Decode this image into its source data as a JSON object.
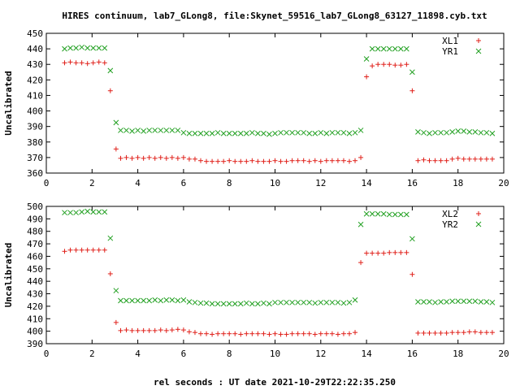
{
  "title": "HIRES continuum, lab7_GLong8, file:Skynet_59516_lab7_GLong8_63127_11898.cyb.txt",
  "xlabel": "rel seconds : UT date 2021-10-29T22:22:35.250",
  "chart_data": [
    {
      "type": "scatter",
      "ylabel": "Uncalibrated",
      "xlim": [
        0,
        20
      ],
      "ylim": [
        360,
        450
      ],
      "xticks": [
        0,
        2,
        4,
        6,
        8,
        10,
        12,
        14,
        16,
        18,
        20
      ],
      "yticks": [
        360,
        370,
        380,
        390,
        400,
        410,
        420,
        430,
        440,
        450
      ],
      "grid": false,
      "legend_position": "top-right",
      "x": [
        0.8,
        1.05,
        1.3,
        1.55,
        1.8,
        2.05,
        2.3,
        2.55,
        2.8,
        3.05,
        3.25,
        3.5,
        3.75,
        4.0,
        4.25,
        4.5,
        4.75,
        5.0,
        5.25,
        5.5,
        5.75,
        6.0,
        6.25,
        6.5,
        6.75,
        7.0,
        7.25,
        7.5,
        7.75,
        8.0,
        8.25,
        8.5,
        8.75,
        9.0,
        9.25,
        9.5,
        9.75,
        10.0,
        10.25,
        10.5,
        10.75,
        11.0,
        11.25,
        11.5,
        11.75,
        12.0,
        12.25,
        12.5,
        12.75,
        13.0,
        13.25,
        13.5,
        13.75,
        14.0,
        14.25,
        14.5,
        14.75,
        15.0,
        15.25,
        15.5,
        15.75,
        16.0,
        16.25,
        16.5,
        16.75,
        17.0,
        17.25,
        17.5,
        17.75,
        18.0,
        18.25,
        18.5,
        18.75,
        19.0,
        19.25,
        19.5
      ],
      "series": [
        {
          "name": "XL1",
          "marker": "plus",
          "color": "#e0201a",
          "values": [
            431,
            431.5,
            431,
            431,
            430.5,
            431,
            431.5,
            431,
            413,
            375.5,
            369.5,
            370,
            369.5,
            370,
            369.5,
            370,
            369.5,
            370,
            369.5,
            370,
            369.5,
            370,
            369,
            369,
            368,
            367.5,
            367.5,
            367.5,
            367.5,
            368,
            367.5,
            367.5,
            367.5,
            368,
            367.5,
            367.5,
            367.5,
            368,
            367.5,
            367.5,
            368,
            368,
            368,
            367.5,
            368,
            367.5,
            368,
            368,
            368,
            368,
            367.5,
            368,
            370,
            422,
            429,
            430,
            430,
            430,
            429.5,
            429.5,
            430,
            413,
            368,
            368.5,
            368,
            368,
            368,
            368,
            369,
            369.5,
            369,
            369,
            369,
            369,
            369,
            369
          ]
        },
        {
          "name": "YR1",
          "marker": "cross",
          "color": "#22a022",
          "values": [
            440,
            440.5,
            440.5,
            441,
            440.5,
            440.5,
            440.5,
            440.5,
            426,
            392.5,
            387.5,
            387.5,
            387,
            387.5,
            387,
            387.5,
            387.5,
            387.5,
            387.5,
            387.5,
            387.5,
            386,
            385.5,
            385.5,
            385.5,
            385.5,
            385.5,
            386,
            385.5,
            385.5,
            385.5,
            385.5,
            385.5,
            386,
            385.5,
            385.5,
            385,
            385.5,
            386,
            386,
            386,
            386,
            386,
            385.5,
            385.5,
            386,
            385.5,
            386,
            386,
            386,
            385.5,
            386,
            387.5,
            433.5,
            440,
            440,
            440,
            440,
            440,
            440,
            440,
            425,
            386.5,
            386,
            385.5,
            386,
            386,
            386,
            386.5,
            387,
            387,
            386.5,
            386.5,
            386,
            386,
            385.5
          ]
        }
      ]
    },
    {
      "type": "scatter",
      "ylabel": "Uncalibrated",
      "xlim": [
        0,
        20
      ],
      "ylim": [
        390,
        500
      ],
      "xticks": [
        0,
        2,
        4,
        6,
        8,
        10,
        12,
        14,
        16,
        18,
        20
      ],
      "yticks": [
        390,
        400,
        410,
        420,
        430,
        440,
        450,
        460,
        470,
        480,
        490,
        500
      ],
      "grid": false,
      "legend_position": "top-right",
      "x": [
        0.8,
        1.05,
        1.3,
        1.55,
        1.8,
        2.05,
        2.3,
        2.55,
        2.8,
        3.05,
        3.25,
        3.5,
        3.75,
        4.0,
        4.25,
        4.5,
        4.75,
        5.0,
        5.25,
        5.5,
        5.75,
        6.0,
        6.25,
        6.5,
        6.75,
        7.0,
        7.25,
        7.5,
        7.75,
        8.0,
        8.25,
        8.5,
        8.75,
        9.0,
        9.25,
        9.5,
        9.75,
        10.0,
        10.25,
        10.5,
        10.75,
        11.0,
        11.25,
        11.5,
        11.75,
        12.0,
        12.25,
        12.5,
        12.75,
        13.0,
        13.25,
        13.5,
        13.75,
        14.0,
        14.25,
        14.5,
        14.75,
        15.0,
        15.25,
        15.5,
        15.75,
        16.0,
        16.25,
        16.5,
        16.75,
        17.0,
        17.25,
        17.5,
        17.75,
        18.0,
        18.25,
        18.5,
        18.75,
        19.0,
        19.25,
        19.5
      ],
      "series": [
        {
          "name": "XL2",
          "marker": "plus",
          "color": "#e0201a",
          "values": [
            464,
            465,
            465,
            465,
            465,
            465,
            465,
            465,
            446,
            407,
            400.5,
            401,
            400.5,
            400.5,
            400.5,
            400.5,
            400.5,
            401,
            400.5,
            401,
            401.5,
            401,
            399.5,
            399,
            398,
            398,
            397.5,
            398,
            398,
            398,
            398,
            397.5,
            398,
            398,
            398,
            398,
            397.5,
            398,
            397.5,
            397.5,
            398,
            398,
            398,
            398,
            397.5,
            398,
            398,
            398,
            397.5,
            398,
            398,
            399,
            455,
            462.5,
            462.5,
            462.5,
            462.5,
            463,
            463,
            463,
            463,
            445.5,
            398.5,
            398.5,
            398.5,
            398.5,
            398.5,
            398.5,
            399,
            399,
            399,
            399.5,
            399.5,
            399,
            399,
            399
          ]
        },
        {
          "name": "YR2",
          "marker": "cross",
          "color": "#22a022",
          "values": [
            495,
            495,
            495,
            495.5,
            496,
            495.5,
            495.5,
            495.5,
            474.5,
            432.5,
            424.5,
            424.5,
            424.5,
            424.5,
            424.5,
            424.5,
            425,
            424.5,
            425,
            425,
            424.5,
            425,
            423.5,
            423,
            422.5,
            422.5,
            422,
            422,
            422,
            422,
            422,
            422,
            422.5,
            422,
            422,
            422.5,
            422,
            423,
            423,
            423,
            423,
            423,
            423,
            423,
            422.5,
            423,
            423,
            423,
            423,
            422.5,
            423,
            425,
            485.5,
            494,
            494,
            494,
            494,
            493.5,
            493.5,
            493.5,
            493.5,
            474,
            423.5,
            423.5,
            423.5,
            423,
            423.5,
            423.5,
            424,
            424,
            424,
            424,
            424,
            423.5,
            423.5,
            423
          ]
        }
      ]
    }
  ]
}
